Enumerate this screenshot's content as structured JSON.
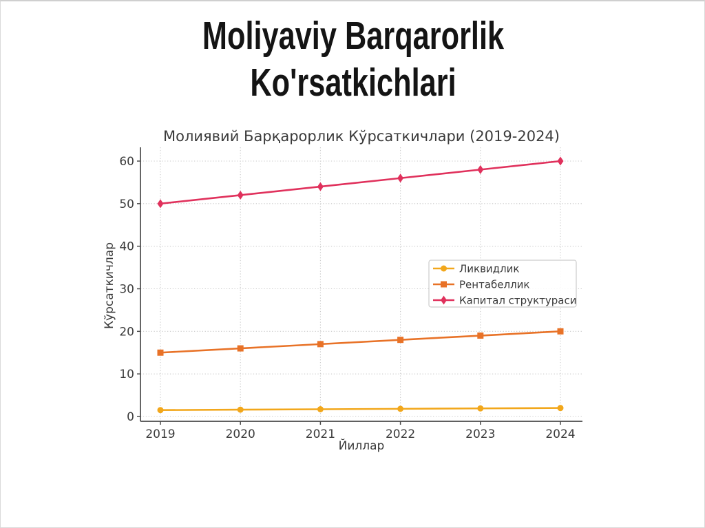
{
  "slide": {
    "title_line1": "Moliyaviy Barqarorlik",
    "title_line2": "Ko'rsatkichlari"
  },
  "chart_data": {
    "type": "line",
    "title": "Молиявий Барқарорлик Кўрсаткичлари (2019-2024)",
    "xlabel": "Йиллар",
    "ylabel": "Кўрсаткичлар",
    "categories": [
      "2019",
      "2020",
      "2021",
      "2022",
      "2023",
      "2024"
    ],
    "series": [
      {
        "name": "Ликвидлик",
        "values": [
          1.5,
          1.6,
          1.7,
          1.8,
          1.9,
          2.0
        ],
        "color": "#F2A71B",
        "marker": "circle"
      },
      {
        "name": "Рентабеллик",
        "values": [
          15,
          16,
          17,
          18,
          19,
          20
        ],
        "color": "#E87227",
        "marker": "square"
      },
      {
        "name": "Капитал структураси",
        "values": [
          50,
          52,
          54,
          56,
          58,
          60
        ],
        "color": "#E0315C",
        "marker": "diamond"
      }
    ],
    "ylim": [
      0,
      60
    ],
    "yticks": [
      0,
      10,
      20,
      30,
      40,
      50,
      60
    ],
    "grid": true,
    "gridline_style": "dotted",
    "legend_position": "center-right",
    "colors": {
      "text": "#3b3b3b",
      "spine": "#4a4a4a",
      "gridline": "#c9c9c9",
      "legend_border": "#cccccc",
      "legend_bg": "#ffffff"
    }
  }
}
